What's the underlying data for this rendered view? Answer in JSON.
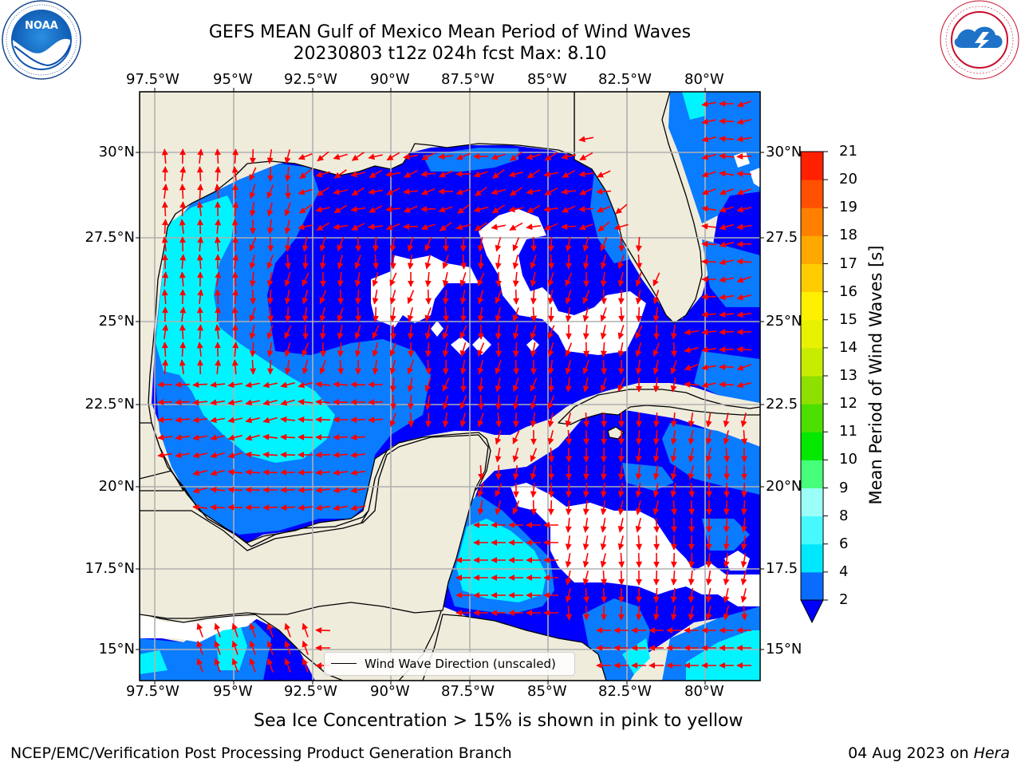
{
  "title": {
    "line1": "GEFS MEAN Gulf of Mexico Mean Period of Wind Waves",
    "line2": "20230803 t12z 024h fcst   Max: 8.10"
  },
  "logos": {
    "noaa": {
      "text": "NOAA",
      "ring_text": "NATIONAL OCEANIC AND ATMOSPHERIC ADMINISTRATION · U.S. DEPARTMENT OF COMMERCE"
    },
    "nws": {
      "ring_text": "NATIONAL WEATHER SERVICE"
    }
  },
  "axes": {
    "lon_ticks": [
      "97.5°W",
      "95°W",
      "92.5°W",
      "90°W",
      "87.5°W",
      "85°W",
      "82.5°W",
      "80°W"
    ],
    "lat_ticks_left": [
      "30°N",
      "27.5°N",
      "25°N",
      "22.5°N",
      "20°N",
      "17.5°N",
      "15°N"
    ],
    "lat_ticks_right": [
      "30°N",
      "27.5",
      "25°N",
      "22.5",
      "20°N",
      "17.5",
      "15°N"
    ]
  },
  "legend": {
    "label": "Wind Wave Direction (unscaled)"
  },
  "colorbar": {
    "label": "Mean Period of Wind Waves [s]",
    "ticks": [
      "2",
      "4",
      "6",
      "8",
      "9",
      "10",
      "11",
      "12",
      "13",
      "14",
      "15",
      "16",
      "17",
      "18",
      "19",
      "20",
      "21"
    ],
    "colors": [
      "#0a6cff",
      "#00e8ff",
      "#48f8ff",
      "#9bfff8",
      "#46ff7a",
      "#05e800",
      "#4ddf00",
      "#8ee000",
      "#c8ec00",
      "#e8f200",
      "#fff000",
      "#ffcc00",
      "#ffa800",
      "#ff8000",
      "#ff5000",
      "#ff2000"
    ],
    "extend_color": "#0000ff"
  },
  "map": {
    "lon_range": [
      -98.5,
      -78.5
    ],
    "lat_range": [
      14.0,
      31.8
    ],
    "colors": {
      "land": "#efecdc",
      "deep_blue": "#0000ff",
      "mid_blue": "#0a7cff",
      "cyan": "#00f4ff",
      "arrow": "#ff0000",
      "grid": "#b0b0b0"
    }
  },
  "chart_data": {
    "type": "heatmap",
    "title": "GEFS MEAN Gulf of Mexico Mean Period of Wind Waves",
    "subtitle": "20230803 t12z 024h fcst   Max: 8.10",
    "colorbar_label": "Mean Period of Wind Waves [s]",
    "value_range": [
      2,
      21
    ],
    "max_value": 8.1,
    "xlim": [
      -98.5,
      -78.5
    ],
    "ylim": [
      14.0,
      31.8
    ]
  },
  "notes": {
    "sea_ice": "Sea Ice Concentration > 15% is shown in pink to yellow",
    "credit": "NCEP/EMC/Verification Post Processing Product Generation Branch",
    "date_prefix": "04 Aug 2023 on ",
    "host": "Hera"
  }
}
